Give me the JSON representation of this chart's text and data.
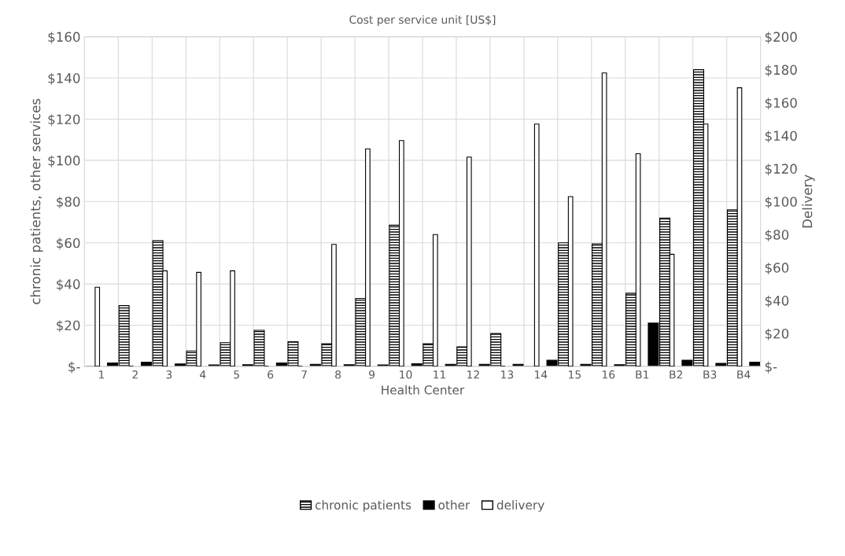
{
  "chart_data": {
    "type": "bar",
    "title": "Cost per service unit [US$]",
    "xlabel": "Health Center",
    "ylabel": "chronic patients, other services",
    "y2label": "Delivery",
    "categories": [
      "1",
      "2",
      "3",
      "4",
      "5",
      "6",
      "7",
      "8",
      "9",
      "10",
      "11",
      "12",
      "13",
      "14",
      "15",
      "16",
      "B1",
      "B2",
      "B3",
      "B4"
    ],
    "series": [
      {
        "name": "chronic patients",
        "color": "#000000",
        "values": [
          null,
          29.5,
          61,
          7.5,
          11.5,
          17.5,
          12,
          11,
          33,
          68.5,
          11,
          9.5,
          16,
          null,
          60,
          59.5,
          35.5,
          72,
          144,
          76
        ]
      },
      {
        "name": "other",
        "color": "#000000",
        "values": [
          1.7,
          2,
          1.2,
          0.7,
          0.8,
          1.7,
          1,
          0.8,
          0.7,
          1.3,
          1,
          1,
          1,
          3,
          1,
          0.8,
          21,
          3,
          1.5,
          2
        ]
      },
      {
        "name": "delivery",
        "color": "#ffffff",
        "axis": "y2",
        "values": [
          48,
          null,
          58,
          57,
          58,
          null,
          null,
          74,
          132,
          137,
          80,
          127,
          null,
          147,
          103,
          178,
          129,
          68,
          147,
          169
        ]
      }
    ],
    "ylim": [
      0,
      160
    ],
    "yticks": [
      {
        "value": 0,
        "label": "$-"
      },
      {
        "value": 20,
        "label": "$20"
      },
      {
        "value": 40,
        "label": "$40"
      },
      {
        "value": 60,
        "label": "$60"
      },
      {
        "value": 80,
        "label": "$80"
      },
      {
        "value": 100,
        "label": "$100"
      },
      {
        "value": 120,
        "label": "$120"
      },
      {
        "value": 140,
        "label": "$140"
      },
      {
        "value": 160,
        "label": "$160"
      }
    ],
    "y2lim": [
      0,
      200
    ],
    "y2ticks": [
      {
        "value": 0,
        "label": "$-"
      },
      {
        "value": 20,
        "label": "$20"
      },
      {
        "value": 40,
        "label": "$40"
      },
      {
        "value": 60,
        "label": "$60"
      },
      {
        "value": 80,
        "label": "$80"
      },
      {
        "value": 100,
        "label": "$100"
      },
      {
        "value": 120,
        "label": "$120"
      },
      {
        "value": 140,
        "label": "$140"
      },
      {
        "value": 160,
        "label": "$160"
      },
      {
        "value": 180,
        "label": "$180"
      },
      {
        "value": 200,
        "label": "$200"
      }
    ],
    "grid": true,
    "legend": "bottom"
  }
}
